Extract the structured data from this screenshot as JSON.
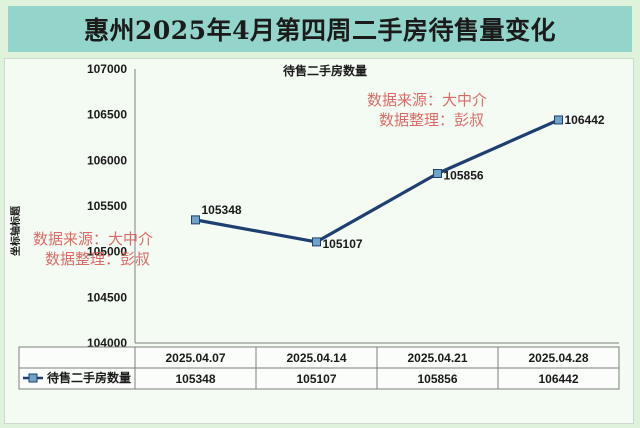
{
  "page": {
    "title": "惠州2025年4月第四周二手房待售量变化"
  },
  "chart_data": {
    "type": "line",
    "title": "待售二手房数量",
    "ylabel": "坐标轴标题",
    "xlabel": "",
    "categories": [
      "2025.04.07",
      "2025.04.14",
      "2025.04.21",
      "2025.04.28"
    ],
    "series": [
      {
        "name": "待售二手房数量",
        "values": [
          105348,
          105107,
          105856,
          106442
        ]
      }
    ],
    "ylim": [
      104000,
      107000
    ],
    "yticks": [
      "107000",
      "106500",
      "106000",
      "105500",
      "105000",
      "104500",
      "104000"
    ],
    "data_labels": [
      "105348",
      "105107",
      "105856",
      "106442"
    ],
    "data_table": true,
    "grid": false,
    "line_color": "#1f3f73"
  },
  "watermarks": [
    {
      "line1": "数据来源：大中介",
      "line2": "数据整理：彭叔"
    },
    {
      "line1": "数据来源：大中介",
      "line2": "数据整理：彭叔"
    }
  ]
}
